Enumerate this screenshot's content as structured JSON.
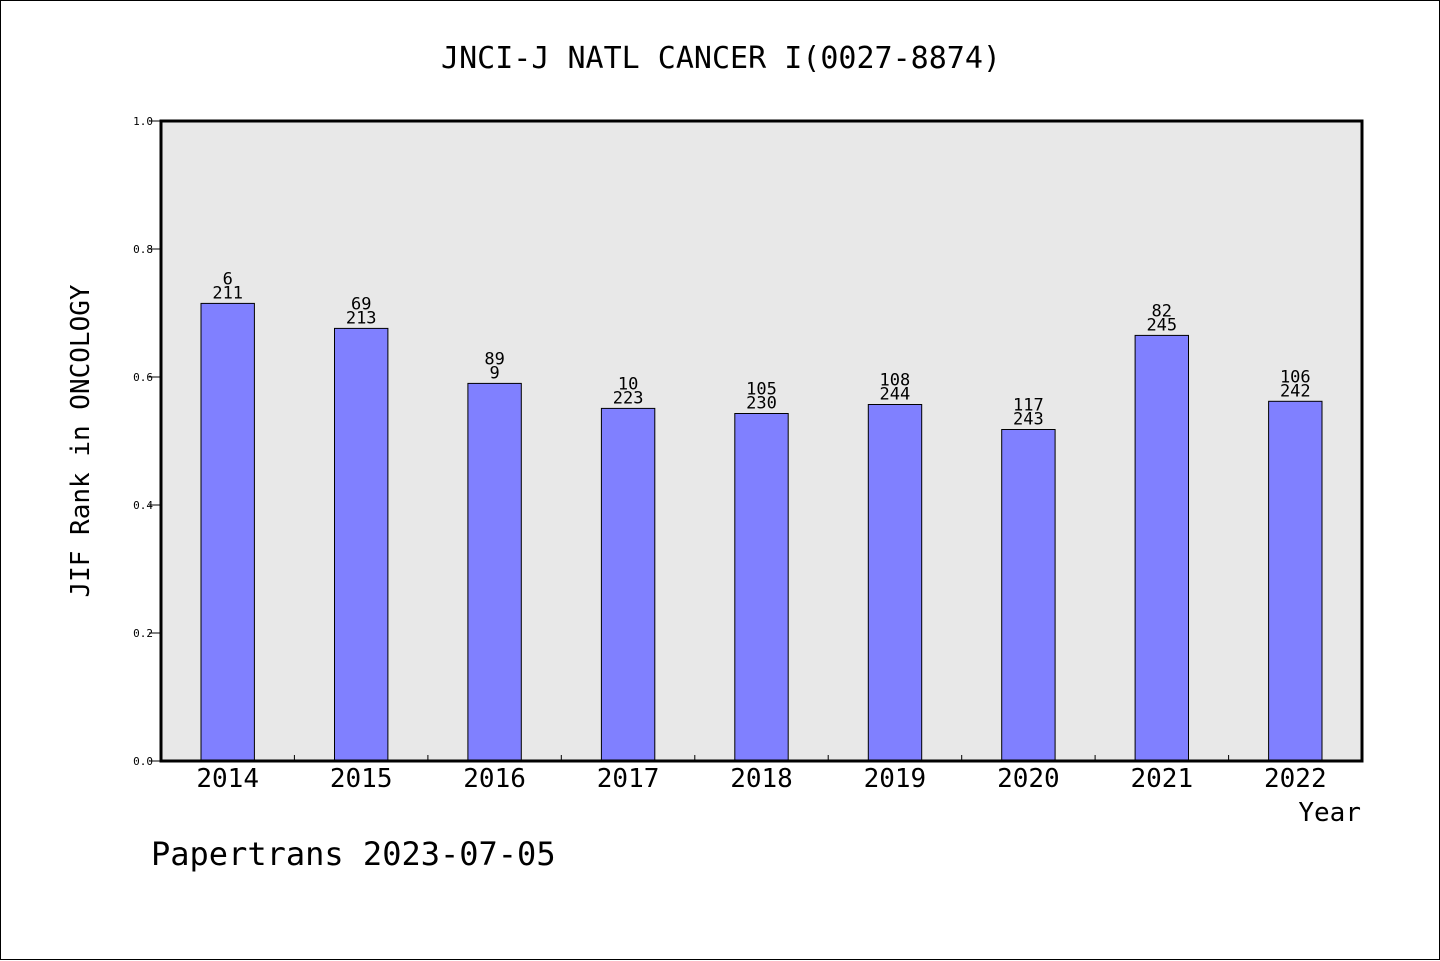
{
  "chart_data": {
    "type": "bar",
    "title": "JNCI-J NATL CANCER I(0027-8874)",
    "xlabel": "Year",
    "ylabel": "JIF Rank in ONCOLOGY",
    "ylim": [
      0,
      1.0
    ],
    "yticks": [
      "0.0",
      "0.2",
      "0.4",
      "0.6",
      "0.8",
      "1.0"
    ],
    "categories": [
      "2014",
      "2015",
      "2016",
      "2017",
      "2018",
      "2019",
      "2020",
      "2021",
      "2022"
    ],
    "values": [
      0.715,
      0.676,
      0.59,
      0.551,
      0.543,
      0.557,
      0.518,
      0.665,
      0.562
    ],
    "labels_top": [
      "6",
      "69",
      "89",
      "10",
      "105",
      "108",
      "117",
      "82",
      "106"
    ],
    "labels_bottom": [
      "211",
      "213",
      "9",
      "223",
      "230",
      "244",
      "243",
      "245",
      "242"
    ],
    "grid": false,
    "colors": {
      "bar": "#8080ff",
      "plot_bg": "#e8e8e8"
    }
  },
  "footer": "Papertrans 2023-07-05"
}
